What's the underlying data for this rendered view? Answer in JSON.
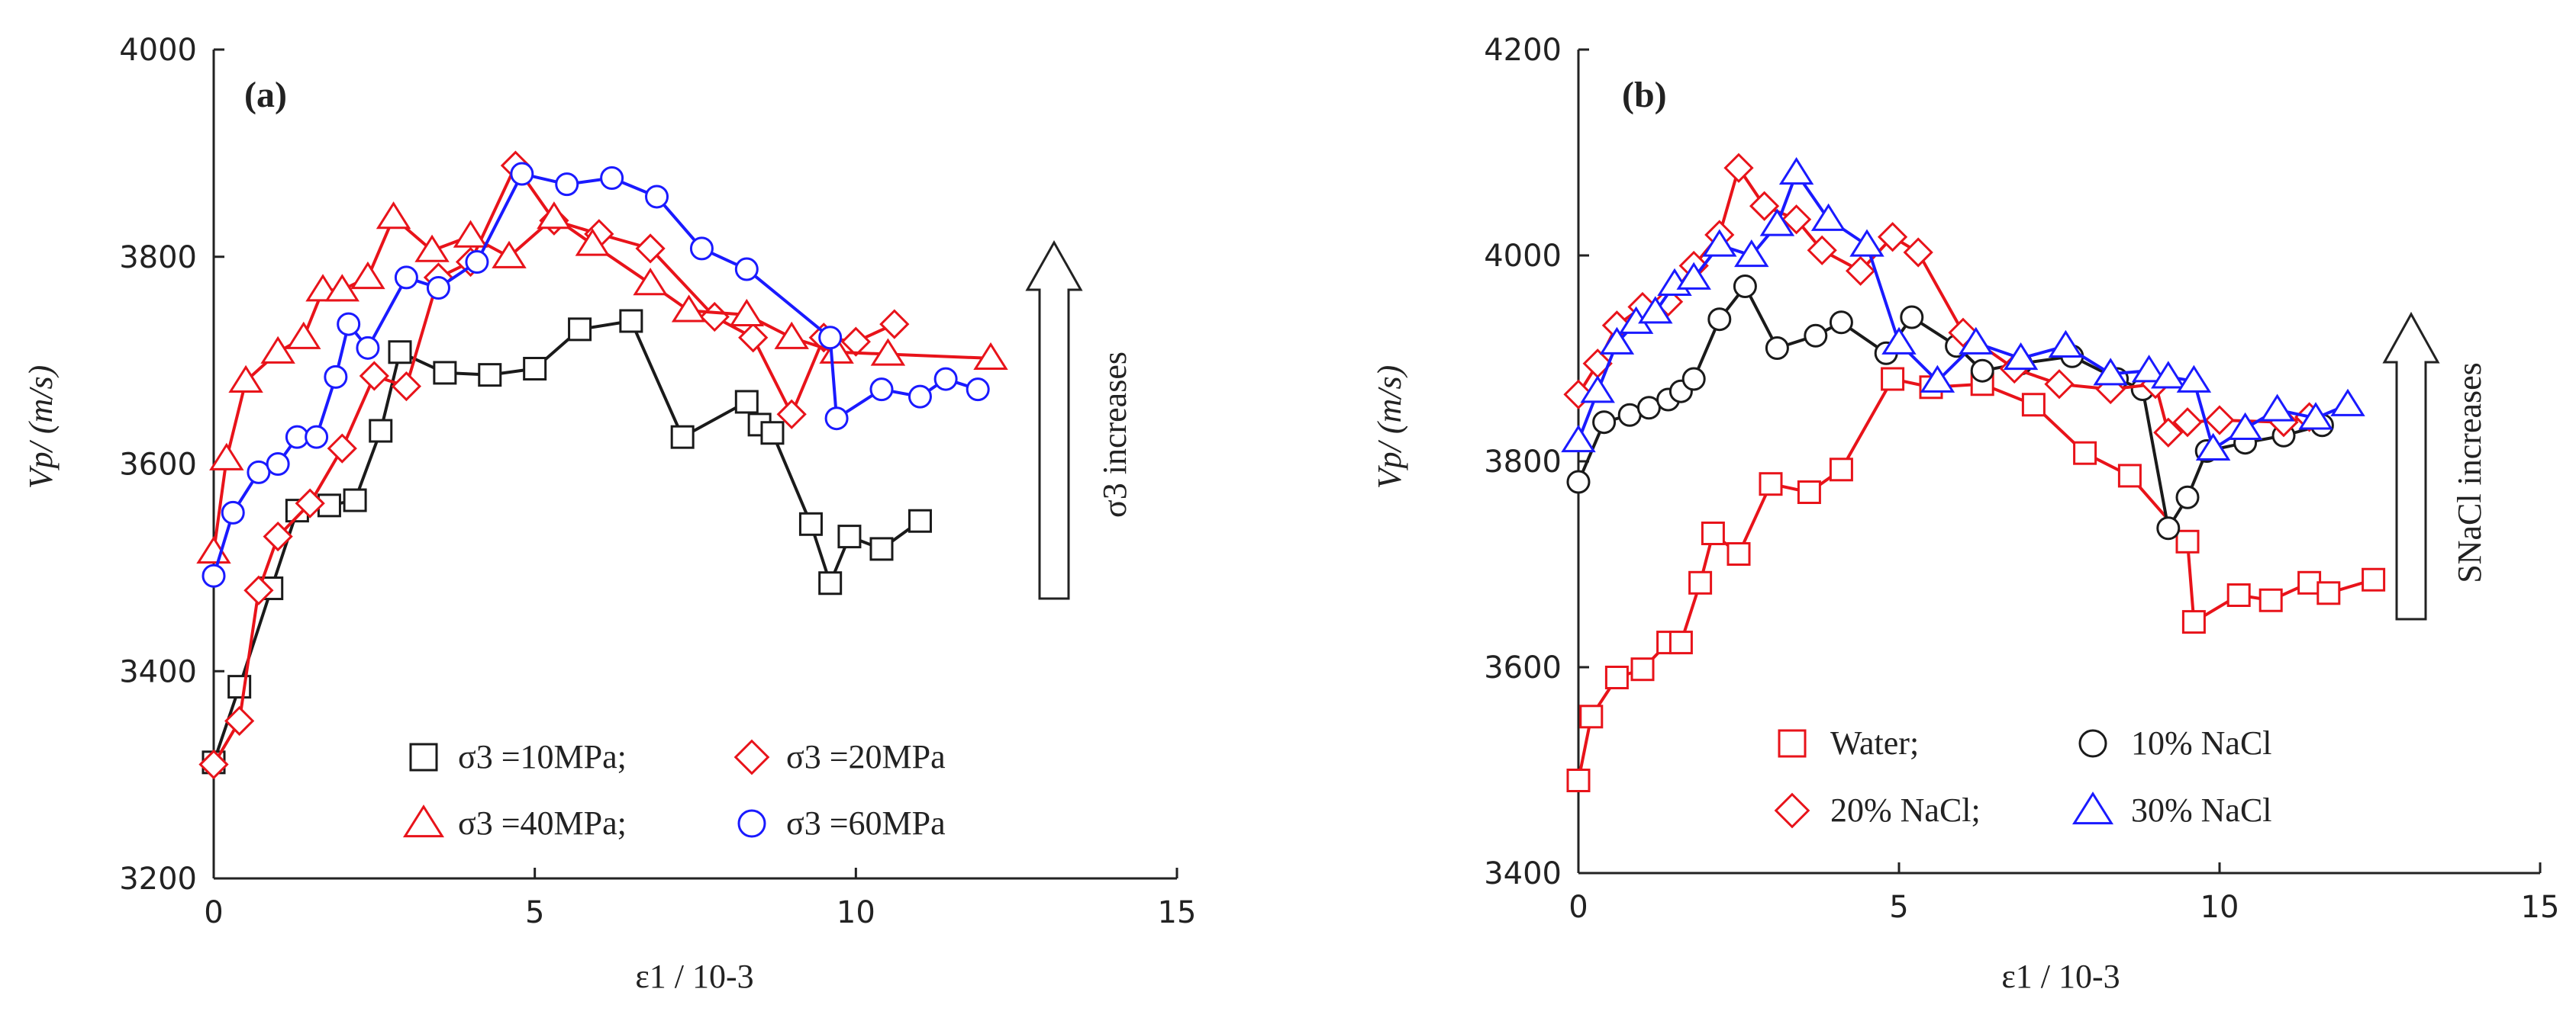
{
  "chart_data": [
    {
      "type": "line",
      "panel_label": "(a)",
      "xlabel": "ε1 / 10-3",
      "ylabel": "Vp/ (m/s)",
      "xlim": [
        0,
        15
      ],
      "ylim": [
        3200,
        4000
      ],
      "x_ticks": [
        0,
        5,
        10,
        15
      ],
      "y_ticks": [
        3200,
        3400,
        3600,
        3800,
        4000
      ],
      "arrow_annotation": "σ3 increases",
      "legend": [
        "σ3 =10MPa;",
        "σ3 =20MPa",
        "σ3 =40MPa;",
        "σ3 =60MPa"
      ],
      "series": [
        {
          "name": "σ3 =10MPa;",
          "marker": "square",
          "color": "#1a1a1a",
          "points": [
            [
              0,
              3312
            ],
            [
              0.4,
              3385
            ],
            [
              0.9,
              3480
            ],
            [
              1.3,
              3555
            ],
            [
              1.8,
              3560
            ],
            [
              2.2,
              3565
            ],
            [
              2.6,
              3632
            ],
            [
              2.9,
              3708
            ],
            [
              3.6,
              3688
            ],
            [
              4.3,
              3686
            ],
            [
              5.0,
              3692
            ],
            [
              5.7,
              3730
            ],
            [
              6.5,
              3738
            ],
            [
              7.3,
              3626
            ],
            [
              8.3,
              3660
            ],
            [
              8.5,
              3638
            ],
            [
              8.7,
              3630
            ],
            [
              9.3,
              3542
            ],
            [
              9.6,
              3485
            ],
            [
              9.9,
              3530
            ],
            [
              10.4,
              3518
            ],
            [
              11.0,
              3545
            ]
          ]
        },
        {
          "name": "σ3 =20MPa",
          "marker": "diamond",
          "color": "#e8131a",
          "points": [
            [
              0,
              3310
            ],
            [
              0.4,
              3352
            ],
            [
              0.7,
              3478
            ],
            [
              1.0,
              3530
            ],
            [
              1.5,
              3562
            ],
            [
              2.0,
              3615
            ],
            [
              2.5,
              3685
            ],
            [
              3.0,
              3675
            ],
            [
              3.5,
              3780
            ],
            [
              4.0,
              3795
            ],
            [
              4.7,
              3888
            ],
            [
              5.3,
              3835
            ],
            [
              6.0,
              3822
            ],
            [
              6.8,
              3808
            ],
            [
              7.8,
              3742
            ],
            [
              8.4,
              3722
            ],
            [
              9.0,
              3648
            ],
            [
              9.5,
              3722
            ],
            [
              10.0,
              3718
            ],
            [
              10.6,
              3735
            ]
          ]
        },
        {
          "name": "σ3 =40MPa;",
          "marker": "triangle",
          "color": "#e8131a",
          "points": [
            [
              0,
              3515
            ],
            [
              0.2,
              3605
            ],
            [
              0.5,
              3680
            ],
            [
              1.0,
              3708
            ],
            [
              1.4,
              3722
            ],
            [
              1.7,
              3768
            ],
            [
              2.0,
              3768
            ],
            [
              2.4,
              3780
            ],
            [
              2.8,
              3838
            ],
            [
              3.4,
              3806
            ],
            [
              4.0,
              3820
            ],
            [
              4.6,
              3800
            ],
            [
              5.3,
              3838
            ],
            [
              5.9,
              3812
            ],
            [
              6.8,
              3774
            ],
            [
              7.4,
              3748
            ],
            [
              8.3,
              3744
            ],
            [
              9.0,
              3722
            ],
            [
              9.7,
              3708
            ],
            [
              10.5,
              3706
            ],
            [
              12.1,
              3702
            ]
          ]
        },
        {
          "name": "σ3 =60MPa",
          "marker": "circle",
          "color": "#1a1aff",
          "points": [
            [
              0,
              3492
            ],
            [
              0.3,
              3553
            ],
            [
              0.7,
              3592
            ],
            [
              1.0,
              3600
            ],
            [
              1.3,
              3626
            ],
            [
              1.6,
              3626
            ],
            [
              1.9,
              3684
            ],
            [
              2.1,
              3735
            ],
            [
              2.4,
              3712
            ],
            [
              3.0,
              3780
            ],
            [
              3.5,
              3770
            ],
            [
              4.1,
              3795
            ],
            [
              4.8,
              3880
            ],
            [
              5.5,
              3870
            ],
            [
              6.2,
              3876
            ],
            [
              6.9,
              3858
            ],
            [
              7.6,
              3808
            ],
            [
              8.3,
              3788
            ],
            [
              9.6,
              3722
            ],
            [
              9.7,
              3644
            ],
            [
              10.4,
              3672
            ],
            [
              11.0,
              3665
            ],
            [
              11.4,
              3682
            ],
            [
              11.9,
              3672
            ]
          ]
        }
      ]
    },
    {
      "type": "line",
      "panel_label": "(b)",
      "xlabel": "ε1 / 10-3",
      "ylabel": "Vp/ (m/s)",
      "xlim": [
        0,
        15
      ],
      "ylim": [
        3400,
        4200
      ],
      "x_ticks": [
        0,
        5,
        10,
        15
      ],
      "y_ticks": [
        3400,
        3600,
        3800,
        4000,
        4200
      ],
      "arrow_annotation": "SNaCl increases",
      "legend": [
        "Water;",
        "10% NaCl",
        "20% NaCl;",
        "30% NaCl"
      ],
      "series": [
        {
          "name": "Water;",
          "marker": "square",
          "color": "#e8131a",
          "points": [
            [
              0,
              3490
            ],
            [
              0.2,
              3552
            ],
            [
              0.6,
              3590
            ],
            [
              1.0,
              3598
            ],
            [
              1.4,
              3624
            ],
            [
              1.6,
              3624
            ],
            [
              1.9,
              3682
            ],
            [
              2.1,
              3730
            ],
            [
              2.5,
              3710
            ],
            [
              3.0,
              3778
            ],
            [
              3.6,
              3770
            ],
            [
              4.1,
              3792
            ],
            [
              4.9,
              3880
            ],
            [
              5.5,
              3872
            ],
            [
              6.3,
              3875
            ],
            [
              7.1,
              3855
            ],
            [
              7.9,
              3808
            ],
            [
              8.6,
              3786
            ],
            [
              9.5,
              3722
            ],
            [
              9.6,
              3644
            ],
            [
              10.3,
              3670
            ],
            [
              10.8,
              3665
            ],
            [
              11.4,
              3682
            ],
            [
              11.7,
              3672
            ],
            [
              12.4,
              3685
            ]
          ]
        },
        {
          "name": "10% NaCl",
          "marker": "circle",
          "color": "#1a1a1a",
          "points": [
            [
              0,
              3780
            ],
            [
              0.4,
              3838
            ],
            [
              0.8,
              3845
            ],
            [
              1.1,
              3852
            ],
            [
              1.4,
              3860
            ],
            [
              1.6,
              3868
            ],
            [
              1.8,
              3880
            ],
            [
              2.2,
              3938
            ],
            [
              2.6,
              3970
            ],
            [
              3.1,
              3910
            ],
            [
              3.7,
              3922
            ],
            [
              4.1,
              3935
            ],
            [
              4.8,
              3905
            ],
            [
              5.2,
              3940
            ],
            [
              5.9,
              3912
            ],
            [
              6.3,
              3888
            ],
            [
              6.9,
              3895
            ],
            [
              7.7,
              3902
            ],
            [
              8.4,
              3880
            ],
            [
              8.8,
              3870
            ],
            [
              9.2,
              3735
            ],
            [
              9.5,
              3765
            ],
            [
              9.8,
              3810
            ],
            [
              10.4,
              3818
            ],
            [
              11.0,
              3825
            ],
            [
              11.6,
              3835
            ]
          ]
        },
        {
          "name": "20% NaCl;",
          "marker": "diamond",
          "color": "#e8131a",
          "points": [
            [
              0,
              3865
            ],
            [
              0.3,
              3895
            ],
            [
              0.6,
              3932
            ],
            [
              1.0,
              3950
            ],
            [
              1.4,
              3955
            ],
            [
              1.8,
              3990
            ],
            [
              2.2,
              4020
            ],
            [
              2.5,
              4085
            ],
            [
              2.9,
              4048
            ],
            [
              3.4,
              4035
            ],
            [
              3.8,
              4005
            ],
            [
              4.4,
              3985
            ],
            [
              4.9,
              4018
            ],
            [
              5.3,
              4003
            ],
            [
              6.0,
              3925
            ],
            [
              6.8,
              3890
            ],
            [
              7.5,
              3875
            ],
            [
              8.3,
              3870
            ],
            [
              9.0,
              3875
            ],
            [
              9.2,
              3828
            ],
            [
              9.5,
              3838
            ],
            [
              10.0,
              3840
            ],
            [
              11.0,
              3838
            ],
            [
              11.4,
              3843
            ]
          ]
        },
        {
          "name": "30% NaCl",
          "marker": "triangle",
          "color": "#1a1aff",
          "points": [
            [
              0,
              3820
            ],
            [
              0.3,
              3868
            ],
            [
              0.6,
              3915
            ],
            [
              0.9,
              3935
            ],
            [
              1.2,
              3945
            ],
            [
              1.5,
              3972
            ],
            [
              1.8,
              3978
            ],
            [
              2.2,
              4010
            ],
            [
              2.7,
              4000
            ],
            [
              3.1,
              4030
            ],
            [
              3.4,
              4080
            ],
            [
              3.9,
              4035
            ],
            [
              4.5,
              4010
            ],
            [
              5.0,
              3915
            ],
            [
              5.6,
              3878
            ],
            [
              6.2,
              3915
            ],
            [
              6.9,
              3900
            ],
            [
              7.6,
              3912
            ],
            [
              8.3,
              3885
            ],
            [
              8.9,
              3888
            ],
            [
              9.2,
              3882
            ],
            [
              9.6,
              3878
            ],
            [
              9.9,
              3812
            ],
            [
              10.4,
              3832
            ],
            [
              10.9,
              3850
            ],
            [
              11.5,
              3842
            ],
            [
              12.0,
              3855
            ]
          ]
        }
      ]
    }
  ]
}
